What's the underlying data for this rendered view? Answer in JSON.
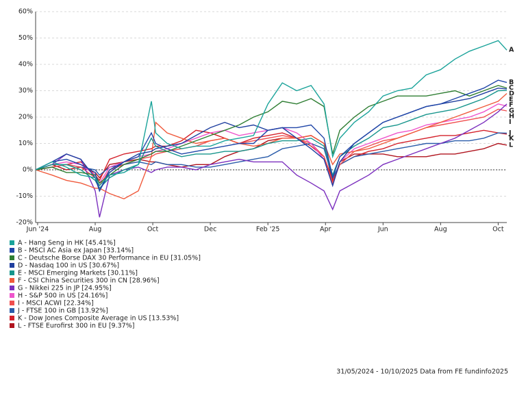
{
  "chart_data": {
    "type": "line",
    "x": [
      -0.07,
      0.5,
      1,
      1.5,
      2,
      2.15,
      2.5,
      3,
      3.5,
      3.95,
      4.1,
      4.5,
      5,
      5.5,
      6,
      6.5,
      7,
      7.5,
      8,
      8.5,
      9,
      9.5,
      9.95,
      10.25,
      10.5,
      11,
      11.5,
      12,
      12.5,
      13,
      13.5,
      14,
      14.5,
      15,
      15.5,
      16,
      16.3
    ],
    "xlim": [
      -0.07,
      16.3
    ],
    "xticks": [
      {
        "value": 0,
        "label": "Jun '24"
      },
      {
        "value": 2,
        "label": "Aug"
      },
      {
        "value": 4,
        "label": "Oct"
      },
      {
        "value": 6,
        "label": "Dec"
      },
      {
        "value": 8,
        "label": "Feb '25"
      },
      {
        "value": 10,
        "label": "Apr"
      },
      {
        "value": 12,
        "label": "Jun"
      },
      {
        "value": 14,
        "label": "Aug"
      },
      {
        "value": 16,
        "label": "Oct"
      }
    ],
    "ylim": [
      -20,
      60
    ],
    "yticks": [
      {
        "value": -20,
        "label": "-20%"
      },
      {
        "value": -10,
        "label": "-10%"
      },
      {
        "value": 0,
        "label": "0%"
      },
      {
        "value": 10,
        "label": "10%"
      },
      {
        "value": 20,
        "label": "20%"
      },
      {
        "value": 30,
        "label": "30%"
      },
      {
        "value": 40,
        "label": "40%"
      },
      {
        "value": 50,
        "label": "50%"
      },
      {
        "value": 60,
        "label": "60%"
      }
    ],
    "grid": true,
    "series": [
      {
        "label": "A",
        "name": "A - Hang Seng in HK [45.41%]",
        "color": "#1aa39a",
        "values": [
          0,
          3,
          1,
          -2,
          -3,
          -6,
          -2,
          -1,
          2,
          26,
          14,
          10,
          8,
          9,
          9,
          11,
          12,
          13,
          25,
          33,
          30,
          32,
          25,
          5,
          12,
          18,
          22,
          28,
          30,
          31,
          36,
          38,
          42,
          45,
          47,
          49,
          45.41
        ]
      },
      {
        "label": "B",
        "name": "B - MSCI AC Asia ex Japan [33.14%]",
        "color": "#2046a8",
        "values": [
          0,
          3,
          4,
          2,
          -1,
          -8,
          0,
          3,
          5,
          14,
          10,
          8,
          6,
          7,
          8,
          9,
          10,
          10,
          15,
          16,
          16,
          17,
          12,
          -3,
          5,
          10,
          14,
          18,
          20,
          22,
          24,
          25,
          27,
          29,
          31,
          34,
          33.14
        ]
      },
      {
        "label": "C",
        "name": "C - Deutsche Borse DAX 30 Performance in EU [31.05%]",
        "color": "#2e7d32",
        "values": [
          0,
          1,
          -1,
          -1,
          -2,
          -5,
          -2,
          2,
          4,
          6,
          7,
          7,
          9,
          11,
          13,
          15,
          17,
          20,
          22,
          26,
          25,
          27,
          24,
          6,
          15,
          20,
          24,
          26,
          28,
          28,
          28,
          29,
          30,
          28,
          30,
          32,
          31.05
        ]
      },
      {
        "label": "D",
        "name": "D - Nasdaq 100 in US [30.67%]",
        "color": "#1f3f9f",
        "values": [
          0,
          3,
          6,
          4,
          -3,
          -8,
          -1,
          3,
          6,
          7,
          8,
          9,
          10,
          13,
          16,
          18,
          16,
          17,
          15,
          16,
          12,
          8,
          4,
          -6,
          3,
          10,
          14,
          18,
          20,
          22,
          24,
          25,
          26,
          27,
          29,
          31,
          30.67
        ]
      },
      {
        "label": "E",
        "name": "E - MSCI Emerging Markets [30.11%]",
        "color": "#16958c",
        "values": [
          0,
          2,
          2,
          0,
          -4,
          -7,
          -3,
          0,
          2,
          12,
          9,
          7,
          5,
          6,
          6,
          7,
          7,
          8,
          10,
          11,
          11,
          12,
          9,
          -2,
          5,
          9,
          12,
          16,
          17,
          19,
          21,
          22,
          23,
          25,
          27,
          30,
          30.11
        ]
      },
      {
        "label": "F",
        "name": "F - CSI China Securities 300 in CN [28.96%]",
        "color": "#f05a3c",
        "values": [
          0,
          -2,
          -4,
          -5,
          -7,
          -7,
          -9,
          -11,
          -8,
          5,
          18,
          14,
          12,
          10,
          11,
          12,
          10,
          9,
          10,
          12,
          12,
          13,
          10,
          2,
          6,
          7,
          8,
          10,
          12,
          14,
          16,
          18,
          20,
          22,
          24,
          26,
          28.96
        ]
      },
      {
        "label": "G",
        "name": "G - Nikkei 225 in JP [24.95%]",
        "color": "#7b2fbe",
        "values": [
          0,
          2,
          6,
          4,
          -8,
          -18,
          -2,
          0,
          1,
          -1,
          0,
          1,
          1,
          0,
          2,
          3,
          4,
          3,
          3,
          3,
          -2,
          -5,
          -8,
          -15,
          -8,
          -5,
          -2,
          2,
          4,
          6,
          8,
          10,
          12,
          15,
          18,
          22,
          24.95
        ]
      },
      {
        "label": "H",
        "name": "H - S&P 500 in US [24.16%]",
        "color": "#ee55cc",
        "values": [
          0,
          2,
          3,
          2,
          -2,
          -5,
          1,
          3,
          5,
          6,
          7,
          8,
          10,
          12,
          14,
          15,
          13,
          14,
          15,
          16,
          14,
          10,
          4,
          -6,
          3,
          8,
          10,
          12,
          14,
          15,
          17,
          18,
          19,
          20,
          22,
          25,
          24.16
        ]
      },
      {
        "label": "I",
        "name": "I - MSCI ACWI [22.34%]",
        "color": "#f04e4e",
        "values": [
          0,
          1,
          2,
          1,
          -3,
          -6,
          0,
          2,
          4,
          5,
          6,
          7,
          8,
          9,
          11,
          12,
          10,
          11,
          12,
          13,
          12,
          10,
          5,
          -5,
          2,
          7,
          9,
          11,
          12,
          14,
          16,
          17,
          18,
          19,
          20,
          23,
          22.34
        ]
      },
      {
        "label": "J",
        "name": "J - FTSE 100 in GB [13.92%]",
        "color": "#2a5caa",
        "values": [
          0,
          1,
          2,
          1,
          0,
          -2,
          1,
          2,
          3,
          2,
          3,
          2,
          2,
          1,
          1,
          2,
          3,
          4,
          5,
          8,
          9,
          10,
          8,
          -3,
          2,
          5,
          6,
          7,
          8,
          9,
          10,
          10,
          11,
          11,
          12,
          14,
          13.92
        ]
      },
      {
        "label": "K",
        "name": "K - Dow Jones Composite Average in US [13.53%]",
        "color": "#d4202a",
        "values": [
          0,
          1,
          2,
          3,
          -2,
          -4,
          4,
          6,
          7,
          8,
          9,
          9,
          11,
          15,
          14,
          12,
          10,
          12,
          13,
          14,
          12,
          9,
          5,
          -4,
          2,
          5,
          7,
          8,
          10,
          11,
          12,
          13,
          13,
          14,
          15,
          14,
          13.53
        ]
      },
      {
        "label": "L",
        "name": "L - FTSE Eurofirst 300 in EU [9.37%]",
        "color": "#b0141e",
        "values": [
          0,
          2,
          0,
          1,
          -1,
          -3,
          2,
          3,
          4,
          3,
          3,
          2,
          1,
          2,
          2,
          5,
          7,
          8,
          11,
          12,
          12,
          13,
          10,
          -5,
          3,
          6,
          6,
          6,
          5,
          5,
          5,
          6,
          6,
          7,
          8,
          10,
          9.37
        ]
      }
    ],
    "footnote": "31/05/2024 - 10/10/2025 Data from FE fundinfo2025"
  }
}
